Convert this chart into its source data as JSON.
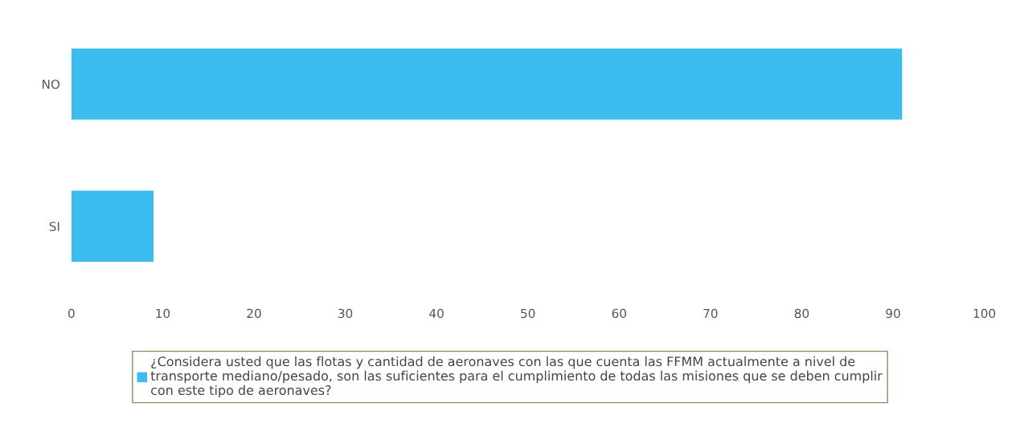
{
  "chart_data": {
    "type": "bar",
    "orientation": "horizontal",
    "categories": [
      "NO",
      "SI"
    ],
    "series": [
      {
        "name": "¿Considera usted que las flotas y cantidad de aeronaves con las que cuenta las FFMM actualmente a nivel de transporte mediano/pesado, son las suficientes para el cumplimiento de todas las misiones que se deben cumplir con este tipo de aeronaves?",
        "color": "#3dbcf0",
        "values": [
          91,
          9
        ]
      }
    ],
    "xlim": [
      0,
      100
    ],
    "xticks": [
      0,
      10,
      20,
      30,
      40,
      50,
      60,
      70,
      80,
      90,
      100
    ],
    "grid": false,
    "legend": "bottom"
  }
}
